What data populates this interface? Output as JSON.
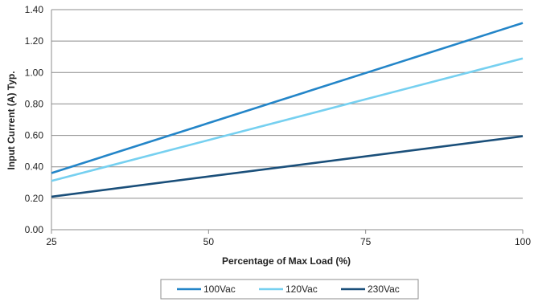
{
  "chart_data": {
    "type": "line",
    "title": "",
    "xlabel": "Percentage of Max Load (%)",
    "ylabel": "Input Current (A) Typ.",
    "x": [
      25,
      100
    ],
    "xlim": [
      25,
      100
    ],
    "ylim": [
      0,
      1.4
    ],
    "x_ticks": [
      25,
      50,
      75,
      100
    ],
    "x_tick_labels": [
      "25",
      "50",
      "75",
      "100"
    ],
    "y_ticks": [
      0,
      0.2,
      0.4,
      0.6,
      0.8,
      1.0,
      1.2,
      1.4
    ],
    "y_tick_labels": [
      "0.00",
      "0.20",
      "0.40",
      "0.60",
      "0.80",
      "1.00",
      "1.20",
      "1.40"
    ],
    "grid": "horizontal",
    "legend_position": "bottom",
    "series": [
      {
        "name": "100Vac",
        "values": [
          0.36,
          1.315
        ],
        "color": "#2385c8"
      },
      {
        "name": "120Vac",
        "values": [
          0.31,
          1.09
        ],
        "color": "#76d0f0"
      },
      {
        "name": "230Vac",
        "values": [
          0.21,
          0.595
        ],
        "color": "#1a4f7a"
      }
    ]
  }
}
